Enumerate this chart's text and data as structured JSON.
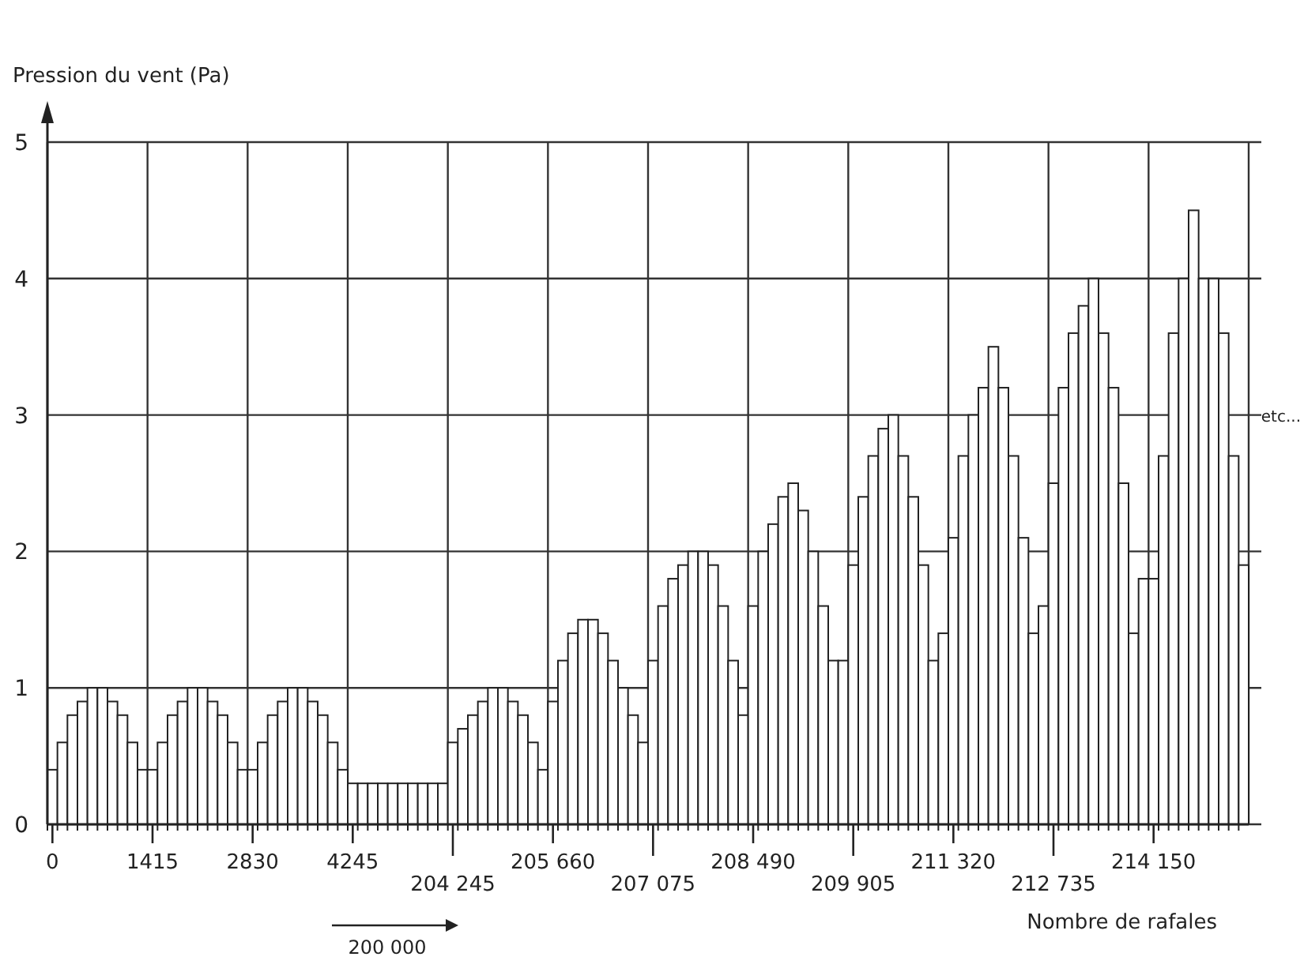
{
  "chart_data": {
    "type": "bar",
    "ylabel": "Pression du vent (Pa)",
    "xlabel": "Nombre de rafales",
    "categories": [
      "0",
      null,
      null,
      null,
      null,
      null,
      null,
      null,
      null,
      null,
      "1415",
      null,
      null,
      null,
      null,
      null,
      null,
      null,
      null,
      null,
      "2830",
      null,
      null,
      null,
      null,
      null,
      null,
      null,
      null,
      null,
      "4245",
      null,
      null,
      null,
      null,
      null,
      null,
      null,
      null,
      null,
      "204 245",
      null,
      null,
      null,
      null,
      null,
      null,
      null,
      null,
      null,
      "205 660",
      null,
      null,
      null,
      null,
      null,
      null,
      null,
      null,
      null,
      "207 075",
      null,
      null,
      null,
      null,
      null,
      null,
      null,
      null,
      null,
      "208 490",
      null,
      null,
      null,
      null,
      null,
      null,
      null,
      null,
      null,
      "209 905",
      null,
      null,
      null,
      null,
      null,
      null,
      null,
      null,
      null,
      "211 320",
      null,
      null,
      null,
      null,
      null,
      null,
      null,
      null,
      null,
      "212 735",
      null,
      null,
      null,
      null,
      null,
      null,
      null,
      null,
      null,
      "214 150",
      null,
      null,
      null,
      null,
      null,
      null,
      null,
      null,
      null
    ],
    "values": [
      0.4,
      0.6,
      0.8,
      0.9,
      1,
      1,
      0.9,
      0.8,
      0.6,
      0.4,
      0.4,
      0.6,
      0.8,
      0.9,
      1,
      1,
      0.9,
      0.8,
      0.6,
      0.4,
      0.4,
      0.6,
      0.8,
      0.9,
      1,
      1,
      0.9,
      0.8,
      0.6,
      0.4,
      0.3,
      0.3,
      0.3,
      0.3,
      0.3,
      0.3,
      0.3,
      0.3,
      0.3,
      0.3,
      0.6,
      0.7,
      0.8,
      0.9,
      1,
      1,
      0.9,
      0.8,
      0.6,
      0.4,
      0.9,
      1.2,
      1.4,
      1.5,
      1.5,
      1.4,
      1.2,
      1,
      0.8,
      0.6,
      1.2,
      1.6,
      1.8,
      1.9,
      2,
      2,
      1.9,
      1.6,
      1.2,
      0.8,
      1.6,
      2,
      2.2,
      2.4,
      2.5,
      2.3,
      2,
      1.6,
      1.2,
      1.2,
      1.9,
      2.4,
      2.7,
      2.9,
      3,
      2.7,
      2.4,
      1.9,
      1.2,
      1.4,
      2.1,
      2.7,
      3,
      3.2,
      3.5,
      3.2,
      2.7,
      2.1,
      1.4,
      1.6,
      2.5,
      3.2,
      3.6,
      3.8,
      4,
      3.6,
      3.2,
      2.5,
      1.4,
      1.8,
      1.8,
      2.7,
      3.6,
      4,
      4.5,
      4,
      4,
      3.6,
      2.7,
      1.9
    ],
    "color": "#ffffff",
    "ylim": [
      0,
      5
    ],
    "yticks": [
      0,
      1,
      2,
      3,
      4,
      5
    ],
    "grid": true,
    "annotations": [
      "etc...",
      "200 000"
    ]
  }
}
